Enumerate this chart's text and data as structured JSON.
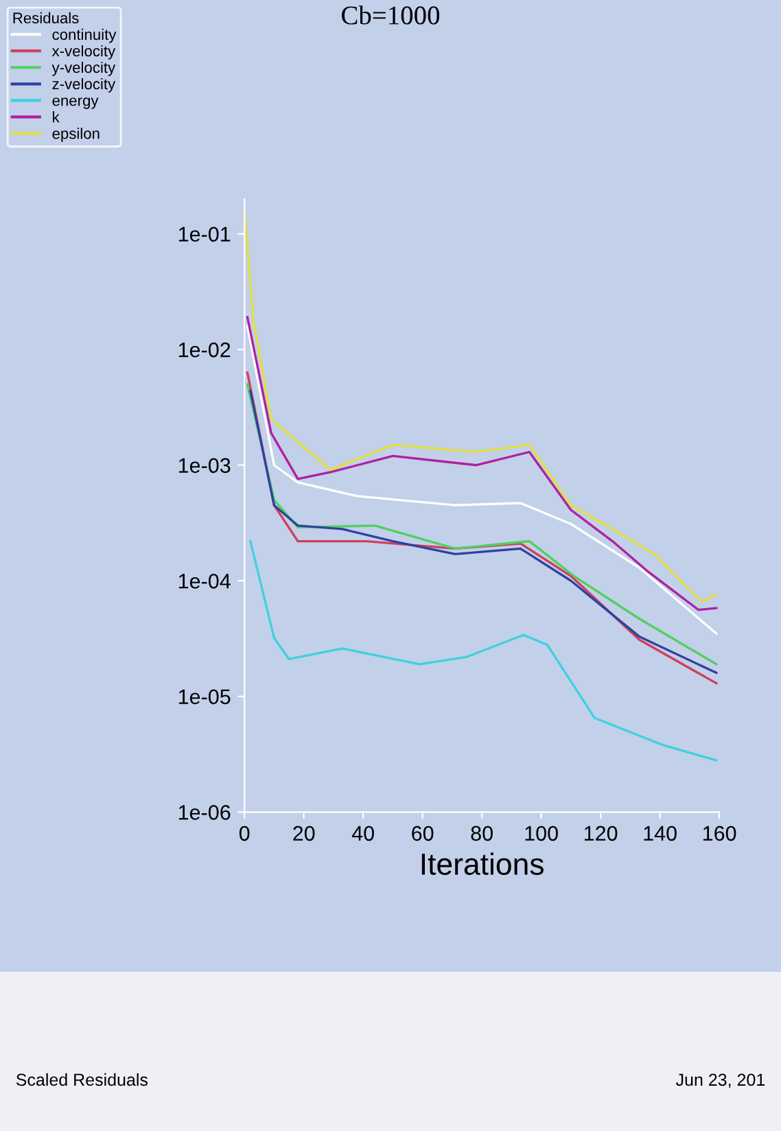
{
  "chart_data": {
    "type": "line",
    "title": "Cb=1000",
    "xlabel": "Iterations",
    "legend_title": "Residuals",
    "legend": "top left",
    "log": "y",
    "grid": false,
    "xlim": [
      0,
      160
    ],
    "xticks": [
      0,
      20,
      40,
      60,
      80,
      100,
      120,
      140,
      160
    ],
    "ylim": [
      1e-06,
      0.2
    ],
    "yticks": [
      {
        "value": 0.1,
        "label": "1e-01"
      },
      {
        "value": 0.01,
        "label": "1e-02"
      },
      {
        "value": 0.001,
        "label": "1e-03"
      },
      {
        "value": 0.0001,
        "label": "1e-04"
      },
      {
        "value": 1e-05,
        "label": "1e-05"
      },
      {
        "value": 1e-06,
        "label": "1e-06"
      }
    ],
    "annotations": [
      "Scaled Residuals",
      "Jun 23, 201"
    ],
    "series": [
      {
        "name": "continuity",
        "color": "#ffffff",
        "x": [
          1,
          10,
          18,
          38,
          71,
          93,
          110,
          133,
          159
        ],
        "values": [
          0.016,
          0.001,
          0.00071,
          0.00054,
          0.00045,
          0.00047,
          0.00031,
          0.00013,
          3.5e-05
        ]
      },
      {
        "name": "x-velocity",
        "color": "#d0405a",
        "x": [
          1,
          10,
          18,
          41,
          71,
          93,
          110,
          133,
          159
        ],
        "values": [
          0.0063,
          0.00045,
          0.00022,
          0.00022,
          0.00019,
          0.00021,
          0.00011,
          3.1e-05,
          1.3e-05
        ]
      },
      {
        "name": "y-velocity",
        "color": "#50d060",
        "x": [
          1,
          10,
          18,
          44,
          71,
          96,
          111,
          133,
          159
        ],
        "values": [
          0.005,
          0.0005,
          0.00029,
          0.0003,
          0.00019,
          0.00022,
          0.00011,
          4.7e-05,
          1.9e-05
        ]
      },
      {
        "name": "z-velocity",
        "color": "#3040a0",
        "x": [
          2,
          10,
          18,
          33,
          50,
          71,
          93,
          110,
          133,
          159
        ],
        "values": [
          0.0044,
          0.00045,
          0.0003,
          0.00028,
          0.00022,
          0.00017,
          0.00019,
          0.0001,
          3.3e-05,
          1.6e-05
        ]
      },
      {
        "name": "energy",
        "color": "#40d0e0",
        "x": [
          2,
          10,
          15,
          33,
          59,
          75,
          94,
          102,
          118,
          141,
          159
        ],
        "values": [
          0.00022,
          3.2e-05,
          2.1e-05,
          2.6e-05,
          1.9e-05,
          2.2e-05,
          3.4e-05,
          2.8e-05,
          6.5e-06,
          3.8e-06,
          2.8e-06
        ]
      },
      {
        "name": "k",
        "color": "#b020a0",
        "x": [
          1,
          9,
          18,
          29,
          50,
          78,
          96,
          110,
          124,
          136,
          153,
          159
        ],
        "values": [
          0.019,
          0.0019,
          0.00076,
          0.00087,
          0.0012,
          0.001,
          0.0013,
          0.00041,
          0.00022,
          0.00012,
          5.6e-05,
          5.8e-05
        ]
      },
      {
        "name": "epsilon",
        "color": "#e0e040",
        "x": [
          0,
          3,
          9,
          29,
          50,
          78,
          96,
          110,
          124,
          138,
          152,
          154,
          159
        ],
        "values": [
          0.16,
          0.018,
          0.0025,
          0.00091,
          0.0015,
          0.0013,
          0.0015,
          0.00045,
          0.00028,
          0.00017,
          7.4e-05,
          6.6e-05,
          7.6e-05
        ]
      }
    ]
  }
}
